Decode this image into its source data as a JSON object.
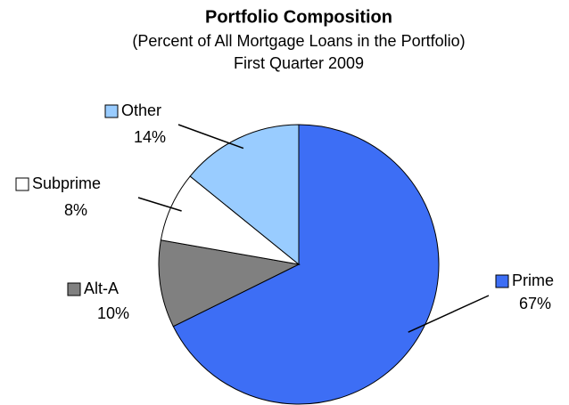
{
  "chart_data": {
    "type": "pie",
    "title": "Portfolio Composition",
    "subtitle": [
      "(Percent of All Mortgage Loans in the Portfolio)",
      "First Quarter 2009"
    ],
    "categories": [
      "Prime",
      "Alt-A",
      "Subprime",
      "Other"
    ],
    "values": [
      67,
      10,
      8,
      14
    ],
    "value_labels": [
      "67%",
      "10%",
      "8%",
      "14%"
    ],
    "colors": [
      "#3d6ef5",
      "#808080",
      "#ffffff",
      "#99ccff"
    ]
  }
}
